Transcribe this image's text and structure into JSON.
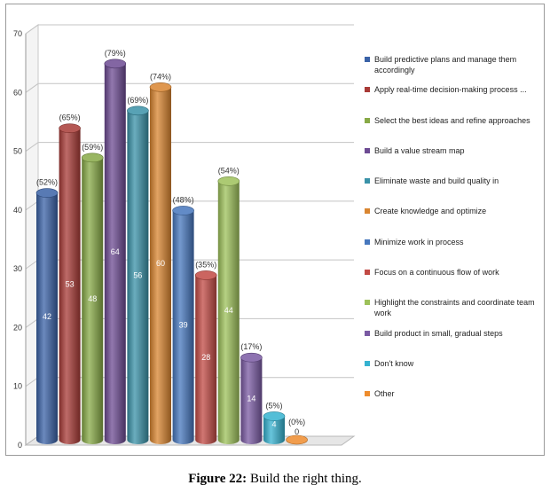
{
  "chart_data": {
    "type": "bar",
    "title": "",
    "xlabel": "",
    "ylabel": "",
    "ylim": [
      0,
      70
    ],
    "yticks": [
      0,
      10,
      20,
      30,
      40,
      50,
      60,
      70
    ],
    "grid": true,
    "legend_position": "right",
    "series": [
      {
        "name": "Build predictive plans and manage them accordingly",
        "value": 42,
        "percent_label": "(52%)",
        "color": "#3a62a7"
      },
      {
        "name": "Apply real-time decision-making process ...",
        "value": 53,
        "percent_label": "(65%)",
        "color": "#a83a36"
      },
      {
        "name": "Select the best ideas and refine approaches",
        "value": 48,
        "percent_label": "(59%)",
        "color": "#87a946"
      },
      {
        "name": "Build a value stream map",
        "value": 64,
        "percent_label": "(79%)",
        "color": "#6d4b93"
      },
      {
        "name": "Eliminate waste and build quality in",
        "value": 56,
        "percent_label": "(69%)",
        "color": "#3a92a8"
      },
      {
        "name": "Create knowledge and optimize",
        "value": 60,
        "percent_label": "(74%)",
        "color": "#d98530"
      },
      {
        "name": "Minimize work in process",
        "value": 39,
        "percent_label": "(48%)",
        "color": "#4677bd"
      },
      {
        "name": "Focus on a continuous flow of work",
        "value": 28,
        "percent_label": "(35%)",
        "color": "#c24a44"
      },
      {
        "name": "Highlight the constraints and coordinate team work",
        "value": 44,
        "percent_label": "(54%)",
        "color": "#9dc15a"
      },
      {
        "name": "Build product in small, gradual steps",
        "value": 14,
        "percent_label": "(17%)",
        "color": "#7a5aa3"
      },
      {
        "name": "Don't know",
        "value": 4,
        "percent_label": "(5%)",
        "color": "#35b2d0"
      },
      {
        "name": "Other",
        "value": 0,
        "percent_label": "(0%)",
        "color": "#ee8c2d"
      }
    ]
  },
  "caption": {
    "prefix": "Figure 22:",
    "text": " Build the right thing."
  }
}
